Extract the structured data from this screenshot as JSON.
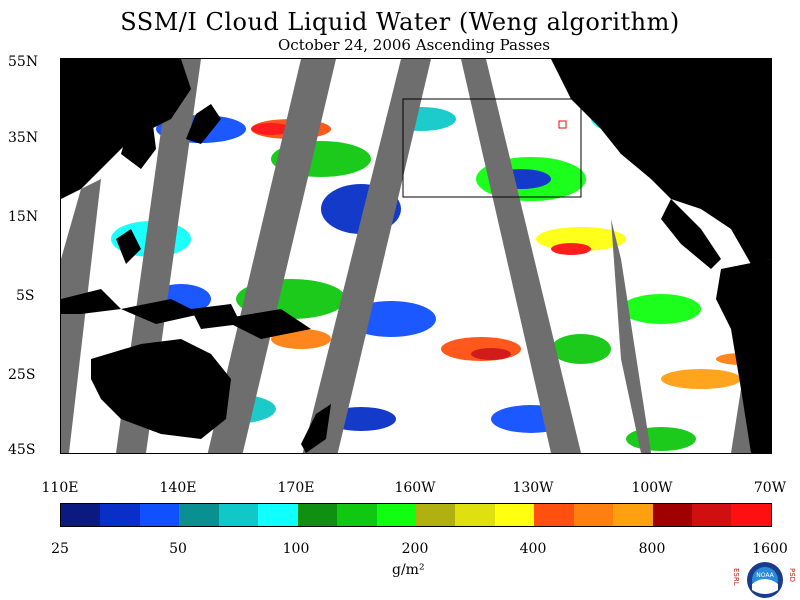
{
  "title": "SSM/I Cloud Liquid Water (Weng algorithm)",
  "subtitle": "October 24, 2006  Ascending Passes",
  "y_axis_labels": [
    "55N",
    "35N",
    "15N",
    "5S",
    "25S",
    "45S"
  ],
  "x_axis_labels": [
    "110E",
    "140E",
    "170E",
    "160W",
    "130W",
    "100W",
    "70W"
  ],
  "colorbar_labels": [
    "25",
    "50",
    "100",
    "200",
    "400",
    "800",
    "1600"
  ],
  "colorbar_colors": [
    "#0a1a80",
    "#0830c8",
    "#1050ff",
    "#0a9090",
    "#10c8c8",
    "#10ffff",
    "#109010",
    "#10c810",
    "#10ff10",
    "#b0b010",
    "#e0e010",
    "#ffff10",
    "#ff5010",
    "#ff8010",
    "#ffa010",
    "#a00000",
    "#d01010",
    "#ff1010"
  ],
  "unit_label": "g/m²",
  "logo": {
    "left_letters": "ESRL",
    "right_letters": "PSD",
    "badge": "NOAA"
  },
  "colors": {
    "land": "#000000",
    "no_data_gap": "#6e6e6e",
    "inset_box": "#000000",
    "marker": "#ff0000"
  }
}
